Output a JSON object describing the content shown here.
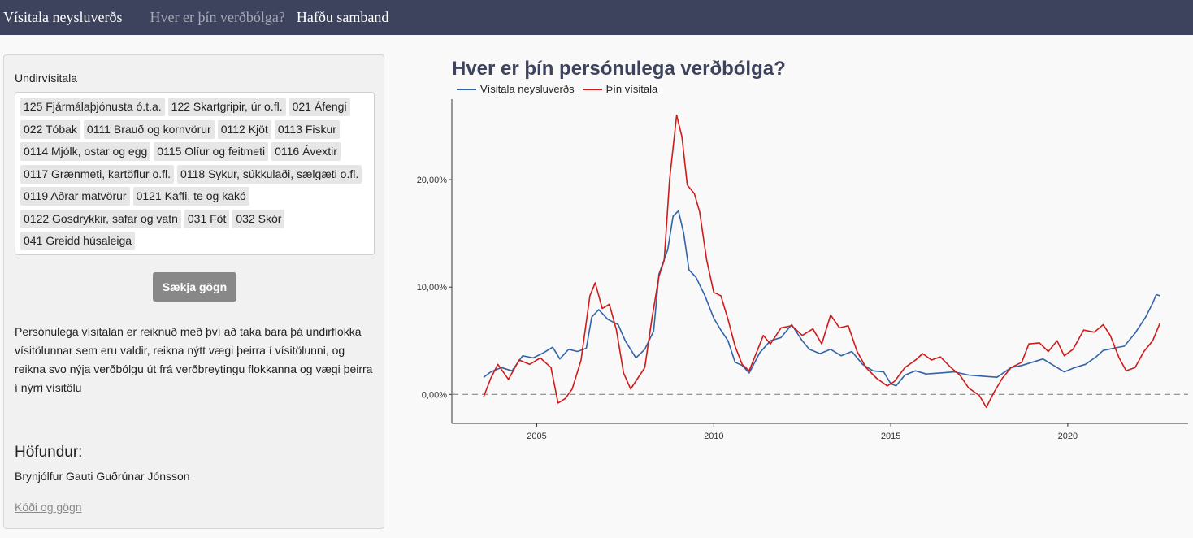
{
  "navbar": {
    "brand": "Vísitala neysluverðs",
    "items": [
      {
        "label": "Hver er þín verðbólga?",
        "active": true
      },
      {
        "label": "Hafðu samband",
        "active": false
      }
    ]
  },
  "sidebar": {
    "select_label": "Undirvísitala",
    "tag_rows": [
      [
        "125 Fjármálaþjónusta ó.t.a.",
        "122 Skartgripir, úr o.fl.",
        "021 Áfengi"
      ],
      [
        "022 Tóbak",
        "0111 Brauð og kornvörur",
        "0112 Kjöt",
        "0113 Fiskur"
      ],
      [
        "0114 Mjólk, ostar og egg",
        "0115 Olíur og feitmeti",
        "0116 Ávextir"
      ],
      [
        "0117 Grænmeti, kartöflur o.fl.",
        "0118 Sykur, súkkulaði, sælgæti o.fl."
      ],
      [
        "0119 Aðrar matvörur",
        "0121 Kaffi, te og kakó"
      ],
      [
        "0122 Gosdrykkir, safar og vatn",
        "031 Föt",
        "032 Skór"
      ],
      [
        "041 Greidd húsaleiga"
      ]
    ],
    "fetch_button": "Sækja gögn",
    "description": "Persónulega vísitalan er reiknuð með því að taka bara þá undirflokka vísitölunnar sem eru valdir, reikna nýtt vægi þeirra í vísitölunni, og reikna svo nýja verðbólgu út frá verðbreytingu flokkanna og vægi þeirra í nýrri vísitölu",
    "author_heading": "Höfundur:",
    "author_name": "Brynjólfur Gauti Guðrúnar Jónsson",
    "code_link": "Kóði og gögn"
  },
  "chart_data": {
    "type": "line",
    "title": "Hver er þín persónulega verðbólga?",
    "xlim": [
      2002.6,
      2023.4
    ],
    "ylim": [
      -2.7,
      27.5
    ],
    "x_ticks": [
      2005,
      2010,
      2015,
      2020
    ],
    "y_ticks": [
      {
        "value": 0,
        "label": "0,00%"
      },
      {
        "value": 10,
        "label": "10,00%"
      },
      {
        "value": 20,
        "label": "20,00%"
      }
    ],
    "reference_line": {
      "y": 0,
      "style": "dashed"
    },
    "grid": false,
    "legend_position": "top-left",
    "series": [
      {
        "name": "Vísitala neysluverðs",
        "color": "#3264a8",
        "points": [
          [
            2003.5,
            1.6
          ],
          [
            2003.7,
            2.1
          ],
          [
            2004.0,
            2.5
          ],
          [
            2004.3,
            2.2
          ],
          [
            2004.6,
            3.6
          ],
          [
            2004.9,
            3.4
          ],
          [
            2005.2,
            3.9
          ],
          [
            2005.45,
            4.4
          ],
          [
            2005.65,
            3.3
          ],
          [
            2005.9,
            4.2
          ],
          [
            2006.15,
            4.0
          ],
          [
            2006.4,
            4.3
          ],
          [
            2006.55,
            7.2
          ],
          [
            2006.75,
            7.9
          ],
          [
            2007.0,
            7.0
          ],
          [
            2007.3,
            6.5
          ],
          [
            2007.5,
            5.0
          ],
          [
            2007.8,
            3.4
          ],
          [
            2008.05,
            4.2
          ],
          [
            2008.3,
            5.9
          ],
          [
            2008.45,
            11.2
          ],
          [
            2008.7,
            13.5
          ],
          [
            2008.85,
            16.6
          ],
          [
            2009.0,
            17.1
          ],
          [
            2009.15,
            15.0
          ],
          [
            2009.3,
            11.6
          ],
          [
            2009.5,
            10.9
          ],
          [
            2009.75,
            9.2
          ],
          [
            2010.0,
            7.1
          ],
          [
            2010.2,
            6.0
          ],
          [
            2010.4,
            5.0
          ],
          [
            2010.6,
            3.0
          ],
          [
            2010.8,
            2.7
          ],
          [
            2011.0,
            2.0
          ],
          [
            2011.3,
            3.9
          ],
          [
            2011.6,
            5.0
          ],
          [
            2011.9,
            5.3
          ],
          [
            2012.2,
            6.5
          ],
          [
            2012.5,
            5.0
          ],
          [
            2012.7,
            4.2
          ],
          [
            2013.0,
            3.8
          ],
          [
            2013.3,
            4.2
          ],
          [
            2013.6,
            3.6
          ],
          [
            2013.9,
            4.0
          ],
          [
            2014.2,
            2.8
          ],
          [
            2014.5,
            2.2
          ],
          [
            2014.8,
            2.1
          ],
          [
            2015.0,
            1.0
          ],
          [
            2015.15,
            0.8
          ],
          [
            2015.4,
            1.8
          ],
          [
            2015.7,
            2.2
          ],
          [
            2016.0,
            1.9
          ],
          [
            2016.4,
            2.0
          ],
          [
            2016.8,
            2.1
          ],
          [
            2017.2,
            1.8
          ],
          [
            2017.6,
            1.7
          ],
          [
            2018.0,
            1.6
          ],
          [
            2018.4,
            2.5
          ],
          [
            2018.7,
            2.7
          ],
          [
            2019.0,
            3.0
          ],
          [
            2019.3,
            3.3
          ],
          [
            2019.6,
            2.7
          ],
          [
            2019.9,
            2.1
          ],
          [
            2020.2,
            2.5
          ],
          [
            2020.5,
            2.8
          ],
          [
            2020.8,
            3.5
          ],
          [
            2021.0,
            4.1
          ],
          [
            2021.3,
            4.3
          ],
          [
            2021.6,
            4.5
          ],
          [
            2021.9,
            5.7
          ],
          [
            2022.2,
            7.2
          ],
          [
            2022.4,
            8.5
          ],
          [
            2022.5,
            9.3
          ],
          [
            2022.6,
            9.2
          ]
        ]
      },
      {
        "name": "Þín vísitala",
        "color": "#d11a1a",
        "points": [
          [
            2003.5,
            -0.2
          ],
          [
            2003.7,
            1.5
          ],
          [
            2003.9,
            2.8
          ],
          [
            2004.2,
            1.4
          ],
          [
            2004.5,
            3.2
          ],
          [
            2004.8,
            2.8
          ],
          [
            2005.1,
            3.4
          ],
          [
            2005.4,
            2.5
          ],
          [
            2005.6,
            -0.8
          ],
          [
            2005.8,
            -0.4
          ],
          [
            2006.0,
            0.5
          ],
          [
            2006.25,
            3.2
          ],
          [
            2006.5,
            9.2
          ],
          [
            2006.65,
            10.4
          ],
          [
            2006.85,
            8.0
          ],
          [
            2007.05,
            8.4
          ],
          [
            2007.25,
            6.0
          ],
          [
            2007.45,
            2.0
          ],
          [
            2007.65,
            0.5
          ],
          [
            2007.85,
            1.5
          ],
          [
            2008.05,
            2.5
          ],
          [
            2008.25,
            7.0
          ],
          [
            2008.45,
            11.0
          ],
          [
            2008.6,
            12.5
          ],
          [
            2008.75,
            20.0
          ],
          [
            2008.95,
            26.0
          ],
          [
            2009.1,
            24.0
          ],
          [
            2009.25,
            19.5
          ],
          [
            2009.45,
            18.7
          ],
          [
            2009.6,
            17.0
          ],
          [
            2009.8,
            12.5
          ],
          [
            2010.0,
            9.5
          ],
          [
            2010.2,
            9.2
          ],
          [
            2010.4,
            7.0
          ],
          [
            2010.6,
            4.5
          ],
          [
            2010.8,
            2.8
          ],
          [
            2011.0,
            2.2
          ],
          [
            2011.4,
            5.5
          ],
          [
            2011.6,
            4.7
          ],
          [
            2011.9,
            6.2
          ],
          [
            2012.2,
            6.4
          ],
          [
            2012.5,
            5.5
          ],
          [
            2012.8,
            6.1
          ],
          [
            2013.05,
            4.7
          ],
          [
            2013.3,
            7.4
          ],
          [
            2013.55,
            6.2
          ],
          [
            2013.8,
            6.4
          ],
          [
            2014.05,
            4.0
          ],
          [
            2014.3,
            2.5
          ],
          [
            2014.6,
            1.5
          ],
          [
            2014.9,
            0.8
          ],
          [
            2015.1,
            1.2
          ],
          [
            2015.4,
            2.5
          ],
          [
            2015.7,
            3.2
          ],
          [
            2015.9,
            3.8
          ],
          [
            2016.15,
            3.2
          ],
          [
            2016.4,
            3.5
          ],
          [
            2016.7,
            2.5
          ],
          [
            2016.95,
            1.8
          ],
          [
            2017.2,
            0.6
          ],
          [
            2017.5,
            -0.1
          ],
          [
            2017.7,
            -1.2
          ],
          [
            2017.9,
            0.1
          ],
          [
            2018.15,
            1.5
          ],
          [
            2018.4,
            2.5
          ],
          [
            2018.7,
            3.0
          ],
          [
            2018.9,
            4.7
          ],
          [
            2019.2,
            4.8
          ],
          [
            2019.45,
            4.0
          ],
          [
            2019.7,
            5.0
          ],
          [
            2019.9,
            3.6
          ],
          [
            2020.15,
            4.2
          ],
          [
            2020.45,
            6.0
          ],
          [
            2020.75,
            5.8
          ],
          [
            2021.0,
            6.5
          ],
          [
            2021.2,
            5.5
          ],
          [
            2021.45,
            3.4
          ],
          [
            2021.65,
            2.2
          ],
          [
            2021.9,
            2.5
          ],
          [
            2022.15,
            4.0
          ],
          [
            2022.4,
            5.0
          ],
          [
            2022.6,
            6.6
          ]
        ]
      }
    ]
  }
}
